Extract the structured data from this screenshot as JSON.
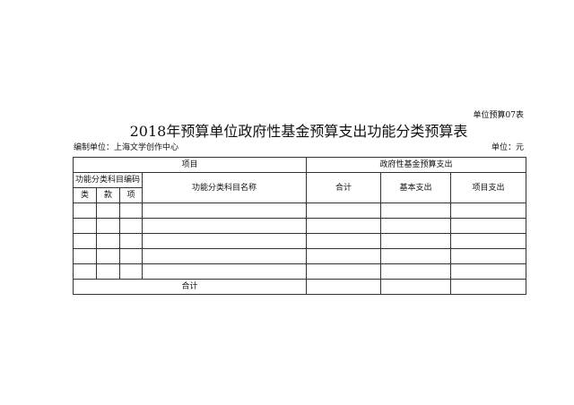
{
  "form_number": "单位预算07表",
  "title": "2018年预算单位政府性基金预算支出功能分类预算表",
  "org_label": "编制单位：上海文学创作中心",
  "unit_label": "单位：元",
  "table": {
    "header_item": "项目",
    "header_fund": "政府性基金预算支出",
    "header_code": "功能分类科目编码",
    "header_lei": "类",
    "header_kuan": "款",
    "header_xiang": "项",
    "header_name": "功能分类科目名称",
    "header_total": "合计",
    "header_basic": "基本支出",
    "header_project": "项目支出",
    "rows": [
      [
        "",
        "",
        "",
        "",
        "",
        "",
        ""
      ],
      [
        "",
        "",
        "",
        "",
        "",
        "",
        ""
      ],
      [
        "",
        "",
        "",
        "",
        "",
        "",
        ""
      ],
      [
        "",
        "",
        "",
        "",
        "",
        "",
        ""
      ],
      [
        "",
        "",
        "",
        "",
        "",
        "",
        ""
      ]
    ],
    "total_label": "合计",
    "total_values": [
      "",
      "",
      ""
    ]
  }
}
